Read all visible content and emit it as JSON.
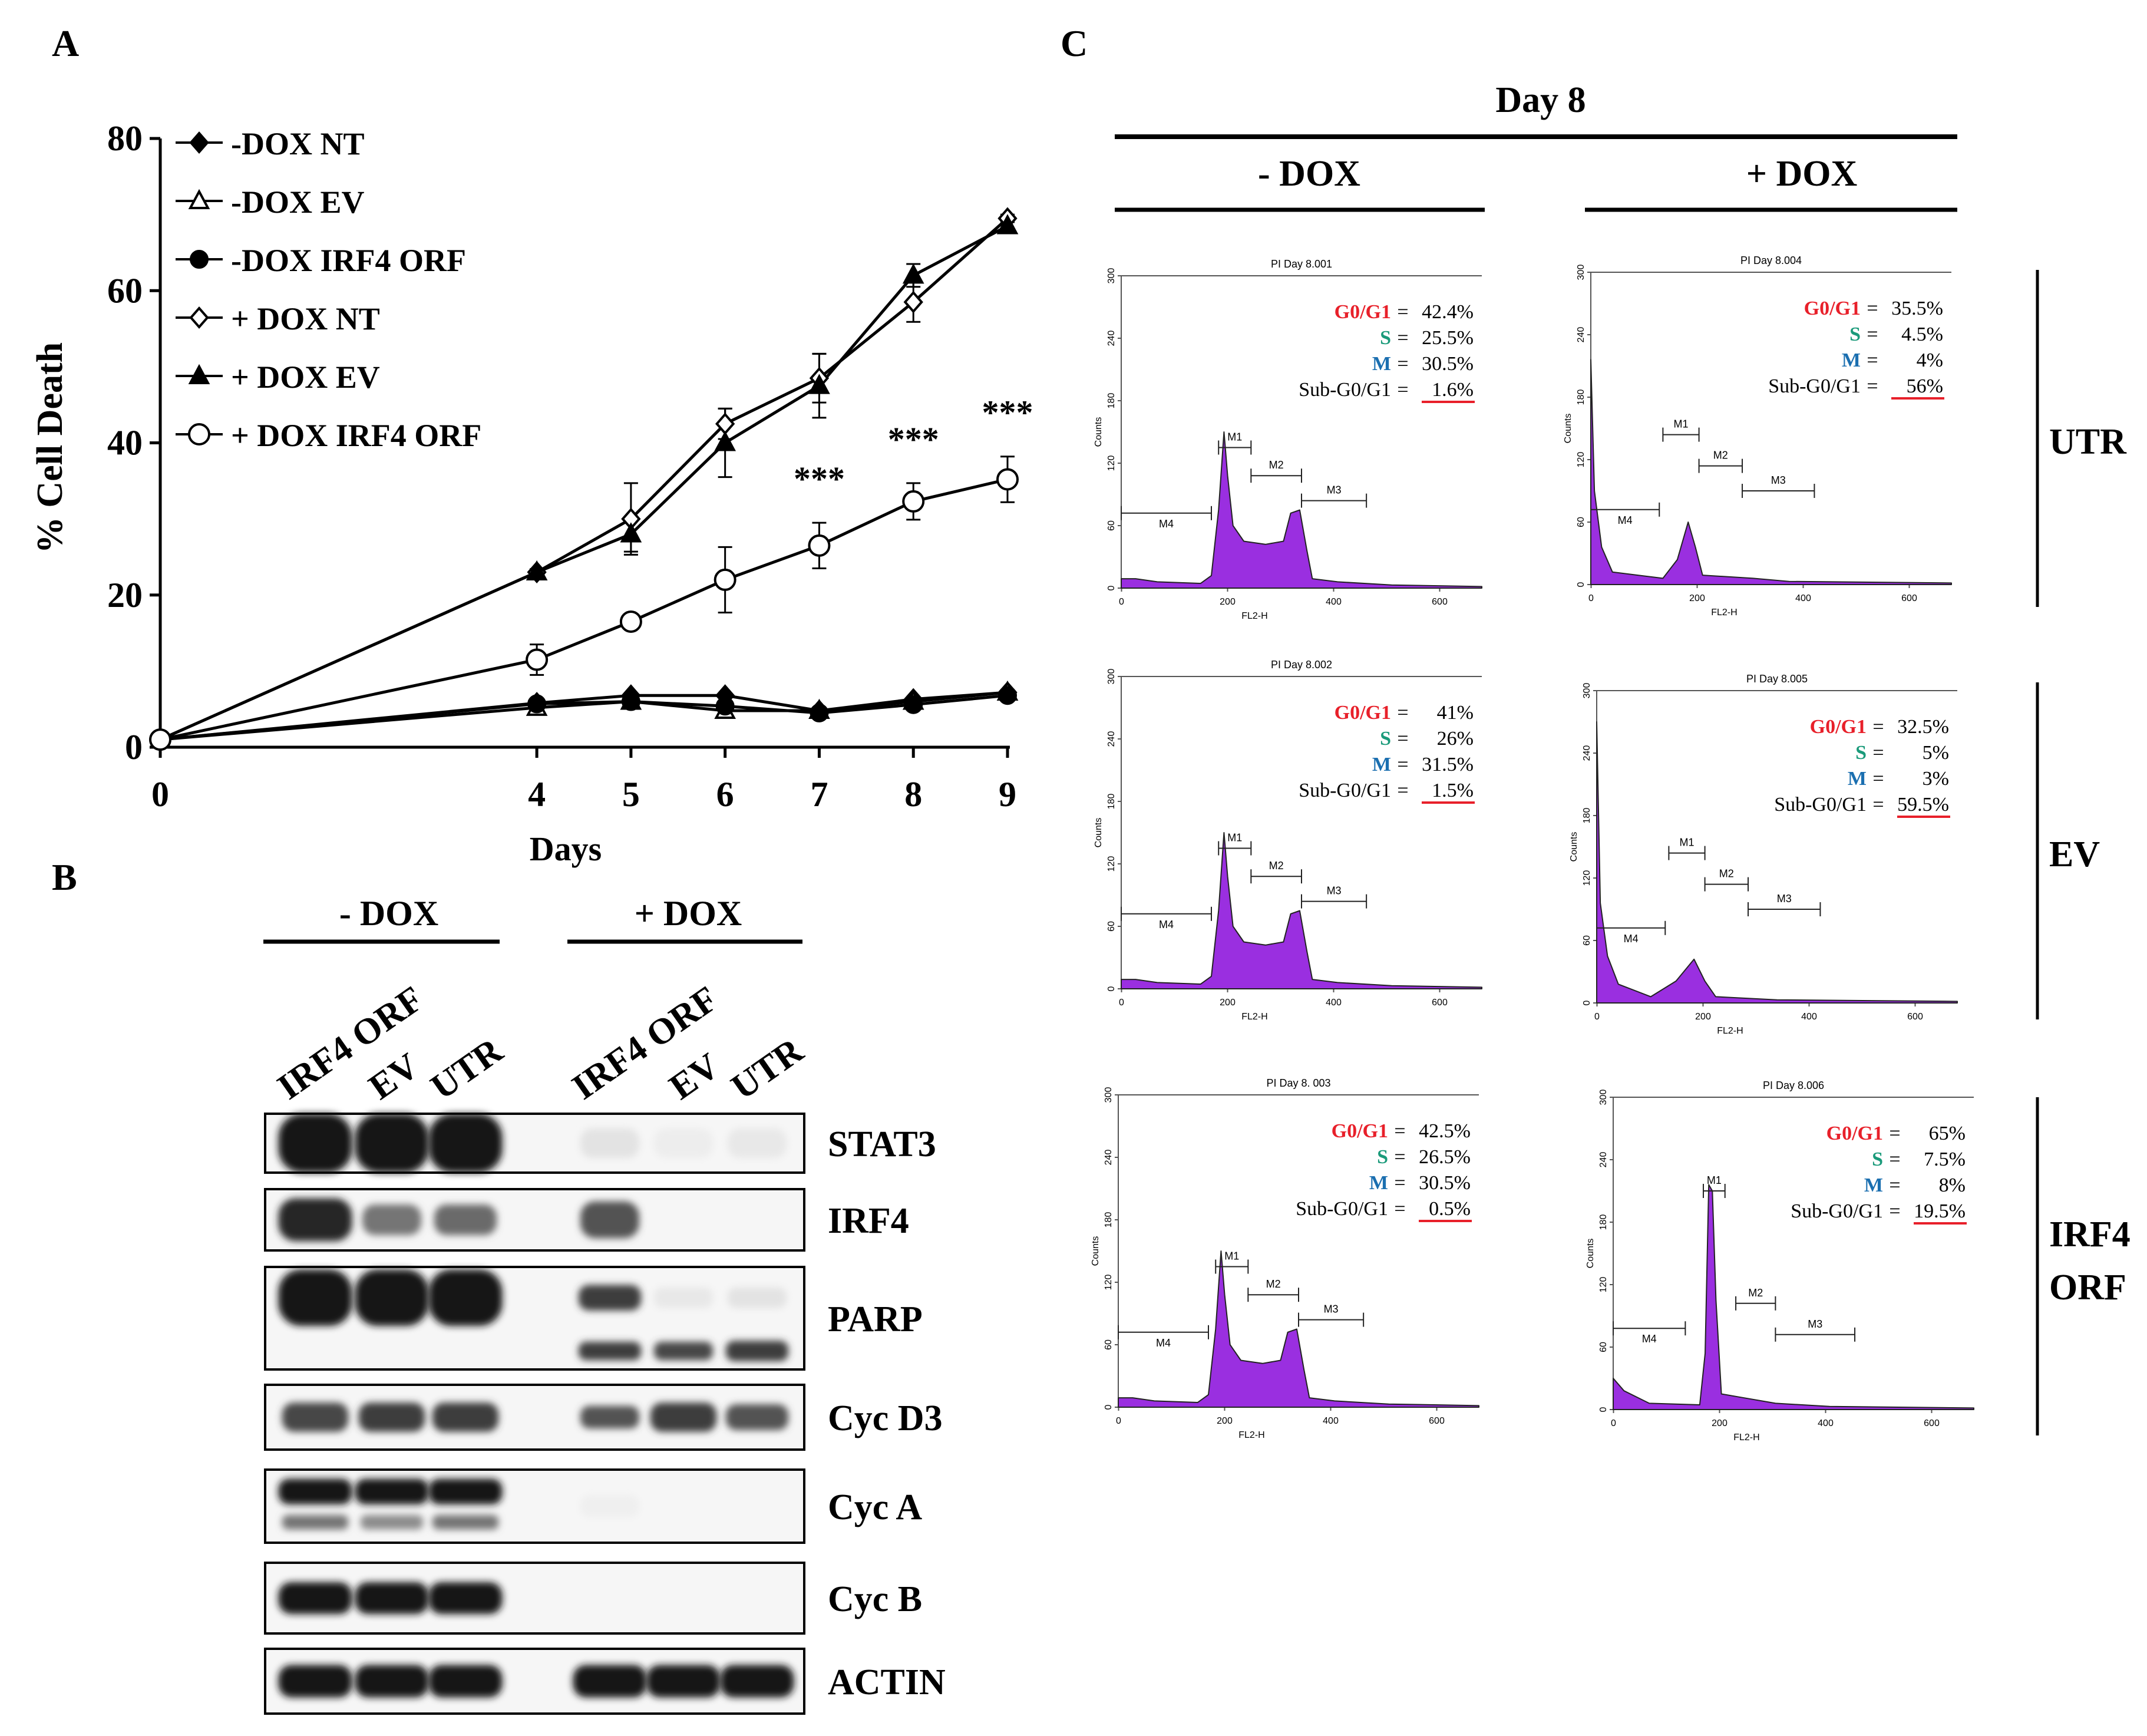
{
  "panel_labels": {
    "a": "A",
    "b": "B",
    "c": "C"
  },
  "chart_data": {
    "type": "line",
    "xlabel": "Days",
    "ylabel": "% Cell Death",
    "x": [
      0,
      4,
      5,
      6,
      7,
      8,
      9
    ],
    "xlim": [
      0,
      9
    ],
    "ylim": [
      0,
      80
    ],
    "yticks": [
      0,
      20,
      40,
      60,
      80
    ],
    "series": [
      {
        "name": "-DOX NT",
        "marker": "diamond-filled",
        "values": [
          1,
          5.8,
          6.8,
          6.8,
          4.8,
          6.3,
          7.2
        ],
        "errors": [
          0,
          0,
          0,
          0,
          0,
          0,
          0
        ]
      },
      {
        "name": "-DOX EV",
        "marker": "triangle-open",
        "values": [
          1,
          5.2,
          6.0,
          4.8,
          4.8,
          6.0,
          7.2
        ],
        "errors": [
          0,
          0,
          0,
          0,
          0,
          0,
          0
        ]
      },
      {
        "name": "-DOX IRF4 ORF",
        "marker": "circle-filled",
        "values": [
          1,
          5.7,
          6.0,
          5.4,
          4.5,
          5.6,
          6.8
        ],
        "errors": [
          0,
          0,
          0,
          0,
          0,
          0,
          0
        ]
      },
      {
        "name": "+ DOX NT",
        "marker": "diamond-open",
        "values": [
          1,
          23.0,
          30.0,
          42.5,
          48.5,
          58.5,
          69.5
        ],
        "errors": [
          0,
          0.4,
          4.7,
          2.0,
          3.2,
          2.6,
          0.5
        ]
      },
      {
        "name": "+ DOX EV",
        "marker": "triangle-filled",
        "values": [
          1,
          23.0,
          28.0,
          40.0,
          47.5,
          62.0,
          68.5
        ],
        "errors": [
          0,
          0.4,
          2.3,
          4.5,
          4.2,
          1.5,
          0.5
        ]
      },
      {
        "name": "+ DOX IRF4 ORF",
        "marker": "circle-open",
        "values": [
          1,
          11.5,
          16.5,
          22.0,
          26.5,
          32.3,
          35.2
        ],
        "errors": [
          0,
          2.0,
          1.0,
          4.3,
          3.0,
          2.4,
          3.0
        ]
      }
    ],
    "significance": [
      {
        "x": 7,
        "label": "***"
      },
      {
        "x": 8,
        "label": "***"
      },
      {
        "x": 9,
        "label": "***"
      }
    ]
  },
  "blot": {
    "group_minus": "- DOX",
    "group_plus": "+ DOX",
    "lanes": [
      "IRF4 ORF",
      "EV",
      "UTR",
      "IRF4 ORF",
      "EV",
      "UTR"
    ],
    "proteins": [
      "STAT3",
      "IRF4",
      "PARP",
      "Cyc D3",
      "Cyc A",
      "Cyc B",
      "ACTIN"
    ]
  },
  "flow": {
    "title": "Day 8",
    "col_minus": "- DOX",
    "col_plus": "+ DOX",
    "rows": [
      "UTR",
      "EV",
      "IRF4 ORF"
    ],
    "axis_y": "Counts",
    "axis_x": "FL2-H",
    "yticks": [
      "0",
      "60",
      "120",
      "180",
      "240",
      "300"
    ],
    "xticks": [
      "0",
      "200",
      "400",
      "600"
    ],
    "gates": [
      "M1",
      "M2",
      "M3",
      "M4"
    ],
    "labels": {
      "g0": "G0/G1",
      "s": "S",
      "m": "M",
      "sub": "Sub-G0/G1"
    },
    "colors": {
      "g0": "#e8202a",
      "s": "#1a9a7a",
      "m": "#1b6fb0",
      "fill": "#9a2fe0",
      "underline": "#e8202a"
    },
    "plots": [
      {
        "title": "PI Day 8.001",
        "g0": "42.4%",
        "s": "25.5%",
        "m": "30.5%",
        "sub": "1.6%"
      },
      {
        "title": "PI Day 8.004",
        "g0": "35.5%",
        "s": "4.5%",
        "m": "4%",
        "sub": "56%"
      },
      {
        "title": "PI Day 8.002",
        "g0": "41%",
        "s": "26%",
        "m": "31.5%",
        "sub": "1.5%"
      },
      {
        "title": "PI Day 8.005",
        "g0": "32.5%",
        "s": "5%",
        "m": "3%",
        "sub": "59.5%"
      },
      {
        "title": "PI Day 8. 003",
        "g0": "42.5%",
        "s": "26.5%",
        "m": "30.5%",
        "sub": "0.5%"
      },
      {
        "title": "PI Day 8.006",
        "g0": "65%",
        "s": "7.5%",
        "m": "8%",
        "sub": "19.5%"
      }
    ]
  }
}
